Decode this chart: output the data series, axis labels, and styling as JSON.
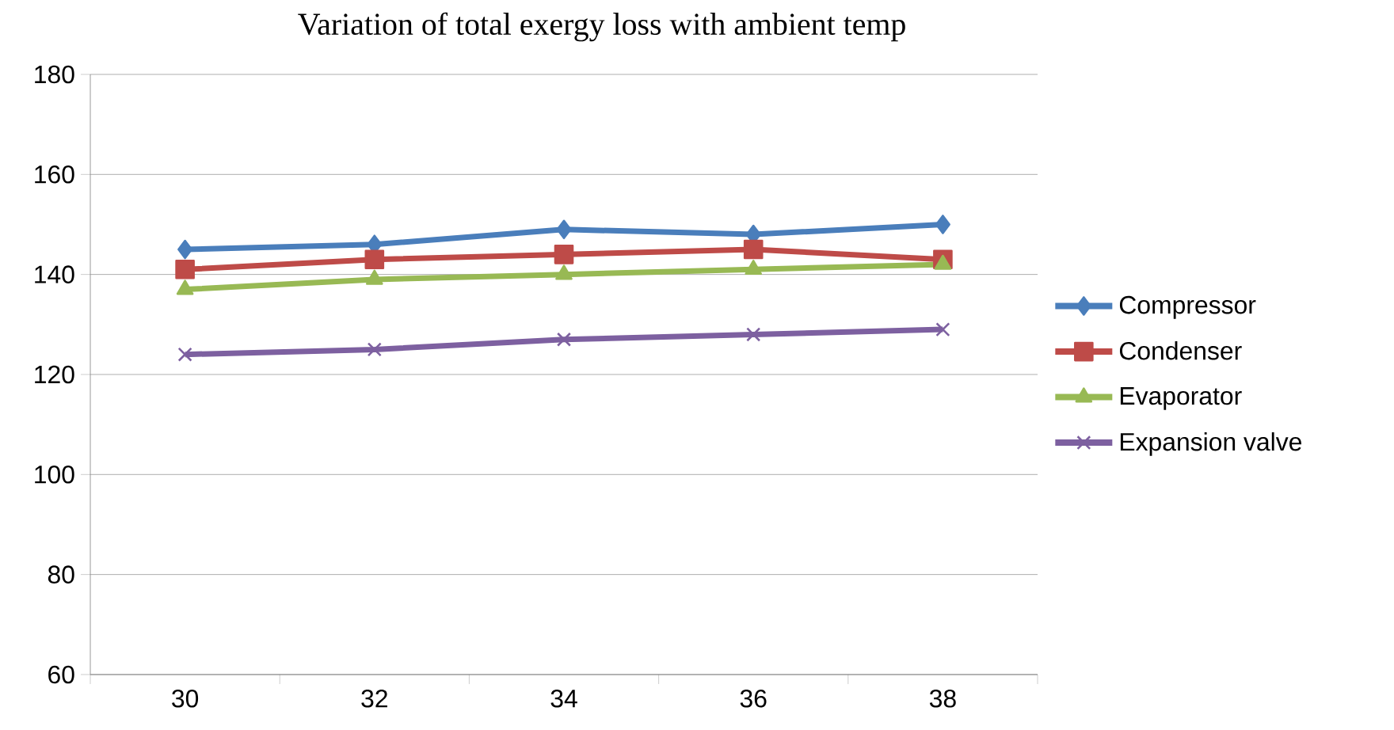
{
  "chart_data": {
    "type": "line",
    "title": "Variation of total exergy loss with ambient temp",
    "categories": [
      "30",
      "32",
      "34",
      "36",
      "38"
    ],
    "ylim": [
      60,
      180
    ],
    "yticks": [
      60,
      80,
      100,
      120,
      140,
      160,
      180
    ],
    "grid": "y",
    "legend": "right",
    "line_style": "solid",
    "series": [
      {
        "name": "Compressor",
        "color": "#4a7ebb",
        "marker": "diamond",
        "values": [
          145,
          146,
          149,
          148,
          150
        ]
      },
      {
        "name": "Condenser",
        "color": "#be4b48",
        "marker": "square",
        "values": [
          141,
          143,
          144,
          145,
          143
        ]
      },
      {
        "name": "Evaporator",
        "color": "#98b954",
        "marker": "triangle",
        "values": [
          137,
          139,
          140,
          141,
          142
        ]
      },
      {
        "name": "Expansion valve",
        "color": "#7d60a0",
        "marker": "cross",
        "values": [
          124,
          125,
          127,
          128,
          129
        ]
      }
    ]
  }
}
